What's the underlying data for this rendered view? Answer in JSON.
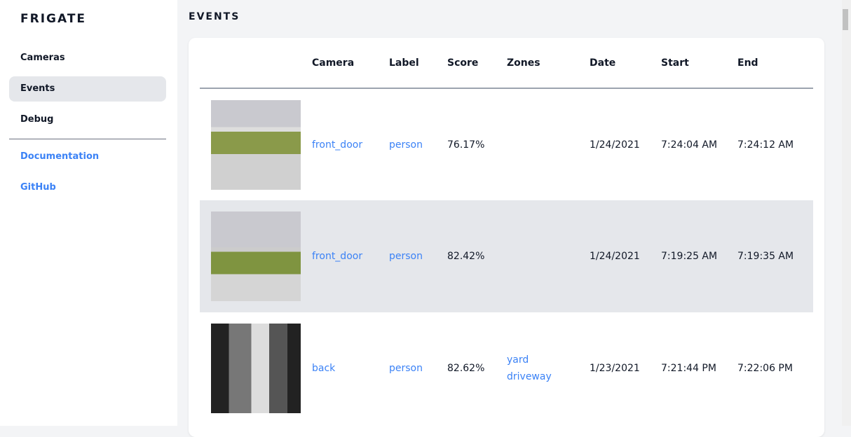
{
  "brand": "FRIGATE",
  "nav": [
    {
      "label": "Cameras"
    },
    {
      "label": "Events"
    },
    {
      "label": "Debug"
    }
  ],
  "links": [
    {
      "label": "Documentation"
    },
    {
      "label": "GitHub"
    }
  ],
  "page_title": "EVENTS",
  "columns": [
    "",
    "Camera",
    "Label",
    "Score",
    "Zones",
    "Date",
    "Start",
    "End"
  ],
  "events": [
    {
      "camera": "front_door",
      "label": "person",
      "score": "76.17%",
      "zones": [
        "",
        ""
      ],
      "date": "1/24/2021",
      "start": "7:24:04 AM",
      "end": "7:24:12 AM"
    },
    {
      "camera": "front_door",
      "label": "person",
      "score": "82.42%",
      "zones": [
        "",
        ""
      ],
      "date": "1/24/2021",
      "start": "7:19:25 AM",
      "end": "7:19:35 AM"
    },
    {
      "camera": "back",
      "label": "person",
      "score": "82.62%",
      "zones": [
        "yard",
        "driveway"
      ],
      "date": "1/23/2021",
      "start": "7:21:44 PM",
      "end": "7:22:06 PM"
    }
  ],
  "colors": {
    "accent": "#3b82f6",
    "active_bg": "#e5e7eb"
  }
}
